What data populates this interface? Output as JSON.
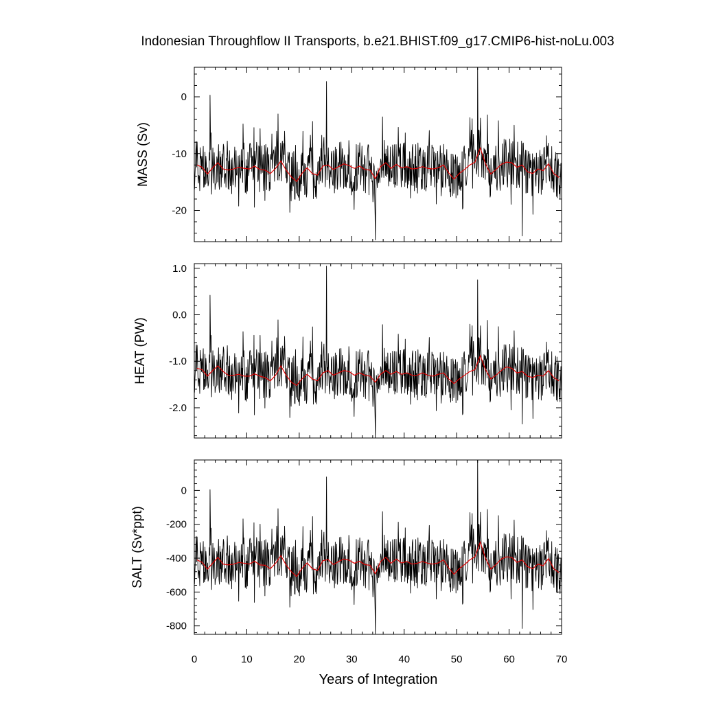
{
  "title": "Indonesian Throughflow II Transports, b.e21.BHIST.f09_g17.CMIP6-hist-noLu.003",
  "chart_data": {
    "type": "line",
    "title": "Indonesian Throughflow II Transports, b.e21.BHIST.f09_g17.CMIP6-hist-noLu.003",
    "xlabel": "Years of Integration",
    "xlim": [
      0,
      70
    ],
    "x_ticks": [
      0,
      10,
      20,
      30,
      40,
      50,
      60,
      70
    ],
    "x_tick_labels": [
      "0",
      "10",
      "20",
      "30",
      "40",
      "50",
      "60",
      "70"
    ],
    "grid": false,
    "legend": "none",
    "series_colors": {
      "monthly": "#000000",
      "annual_mean": "#e00000"
    },
    "panels": [
      {
        "ylabel": "MASS (Sv)",
        "ylim": [
          -25.5,
          5.2
        ],
        "y_ticks": [
          0,
          -10,
          -20
        ],
        "y_tick_labels": [
          "0",
          "-10",
          "-20"
        ],
        "annual_mean": {
          "x": [
            0.5,
            1.5,
            2.5,
            3.5,
            4.5,
            5.5,
            6.5,
            7.5,
            8.5,
            9.5,
            10.5,
            11.5,
            12.5,
            13.5,
            14.5,
            15.5,
            16.5,
            17.5,
            18.5,
            19.5,
            20.5,
            21.5,
            22.5,
            23.5,
            24.5,
            25.5,
            26.5,
            27.5,
            28.5,
            29.5,
            30.5,
            31.5,
            32.5,
            33.5,
            34.5,
            35.5,
            36.5,
            37.5,
            38.5,
            39.5,
            40.5,
            41.5,
            42.5,
            43.5,
            44.5,
            45.5,
            46.5,
            47.5,
            48.5,
            49.5,
            50.5,
            51.5,
            52.5,
            53.5,
            54.5,
            55.5,
            56.5,
            57.5,
            58.5,
            59.5,
            60.5,
            61.5,
            62.5,
            63.5,
            64.5,
            65.5,
            66.5,
            67.5,
            68.5,
            69.5
          ],
          "y": [
            -12.0,
            -12.4,
            -13.6,
            -12.5,
            -11.6,
            -12.7,
            -12.9,
            -12.7,
            -12.4,
            -12.6,
            -12.7,
            -12.2,
            -12.8,
            -12.9,
            -13.5,
            -12.6,
            -11.3,
            -12.9,
            -14.1,
            -14.9,
            -13.5,
            -12.5,
            -13.5,
            -13.8,
            -12.2,
            -12.0,
            -12.8,
            -12.3,
            -11.8,
            -12.1,
            -12.6,
            -12.2,
            -12.8,
            -12.9,
            -14.4,
            -12.3,
            -11.6,
            -12.6,
            -11.9,
            -12.5,
            -12.3,
            -12.7,
            -12.6,
            -12.3,
            -12.6,
            -12.7,
            -12.5,
            -12.0,
            -13.4,
            -14.5,
            -13.5,
            -12.8,
            -12.0,
            -11.5,
            -9.0,
            -11.8,
            -13.6,
            -12.8,
            -11.9,
            -11.5,
            -11.6,
            -12.4,
            -12.0,
            -13.2,
            -13.5,
            -12.7,
            -13.0,
            -11.8,
            -13.5,
            -14.2
          ]
        },
        "annotated_extremes": [
          {
            "x": 3.0,
            "y": 0.3
          },
          {
            "x": 25.2,
            "y": 2.7
          },
          {
            "x": 34.5,
            "y": -25.2
          },
          {
            "x": 54.0,
            "y": 5.1
          },
          {
            "x": 62.5,
            "y": -24.5
          }
        ]
      },
      {
        "ylabel": "HEAT (PW)",
        "ylim": [
          -2.65,
          1.1
        ],
        "y_ticks": [
          1.0,
          0.0,
          -1.0,
          -2.0
        ],
        "y_tick_labels": [
          "1.0",
          "0.0",
          "-1.0",
          "-2.0"
        ],
        "annual_mean": {
          "x": [
            0.5,
            1.5,
            2.5,
            3.5,
            4.5,
            5.5,
            6.5,
            7.5,
            8.5,
            9.5,
            10.5,
            11.5,
            12.5,
            13.5,
            14.5,
            15.5,
            16.5,
            17.5,
            18.5,
            19.5,
            20.5,
            21.5,
            22.5,
            23.5,
            24.5,
            25.5,
            26.5,
            27.5,
            28.5,
            29.5,
            30.5,
            31.5,
            32.5,
            33.5,
            34.5,
            35.5,
            36.5,
            37.5,
            38.5,
            39.5,
            40.5,
            41.5,
            42.5,
            43.5,
            44.5,
            45.5,
            46.5,
            47.5,
            48.5,
            49.5,
            50.5,
            51.5,
            52.5,
            53.5,
            54.5,
            55.5,
            56.5,
            57.5,
            58.5,
            59.5,
            60.5,
            61.5,
            62.5,
            63.5,
            64.5,
            65.5,
            66.5,
            67.5,
            68.5,
            69.5
          ],
          "y": [
            -1.15,
            -1.18,
            -1.32,
            -1.2,
            -1.1,
            -1.22,
            -1.3,
            -1.3,
            -1.28,
            -1.32,
            -1.32,
            -1.27,
            -1.32,
            -1.35,
            -1.42,
            -1.3,
            -1.1,
            -1.3,
            -1.45,
            -1.52,
            -1.38,
            -1.28,
            -1.38,
            -1.42,
            -1.25,
            -1.2,
            -1.3,
            -1.25,
            -1.2,
            -1.22,
            -1.3,
            -1.25,
            -1.3,
            -1.32,
            -1.45,
            -1.28,
            -1.2,
            -1.28,
            -1.22,
            -1.28,
            -1.25,
            -1.3,
            -1.3,
            -1.25,
            -1.3,
            -1.32,
            -1.28,
            -1.25,
            -1.38,
            -1.48,
            -1.38,
            -1.3,
            -1.22,
            -1.18,
            -0.88,
            -1.18,
            -1.38,
            -1.3,
            -1.2,
            -1.12,
            -1.15,
            -1.25,
            -1.22,
            -1.32,
            -1.35,
            -1.3,
            -1.32,
            -1.2,
            -1.35,
            -1.42
          ]
        },
        "annotated_extremes": [
          {
            "x": 3.0,
            "y": 0.42
          },
          {
            "x": 25.2,
            "y": 1.05
          },
          {
            "x": 34.5,
            "y": -2.65
          },
          {
            "x": 54.0,
            "y": 0.75
          },
          {
            "x": 62.5,
            "y": -2.35
          }
        ]
      },
      {
        "ylabel": "SALT (Sv*ppt)",
        "ylim": [
          -850,
          180
        ],
        "y_ticks": [
          0,
          -200,
          -400,
          -600,
          -800
        ],
        "y_tick_labels": [
          "0",
          "-200",
          "-400",
          "-600",
          "-800"
        ],
        "annual_mean": {
          "x": [
            0.5,
            1.5,
            2.5,
            3.5,
            4.5,
            5.5,
            6.5,
            7.5,
            8.5,
            9.5,
            10.5,
            11.5,
            12.5,
            13.5,
            14.5,
            15.5,
            16.5,
            17.5,
            18.5,
            19.5,
            20.5,
            21.5,
            22.5,
            23.5,
            24.5,
            25.5,
            26.5,
            27.5,
            28.5,
            29.5,
            30.5,
            31.5,
            32.5,
            33.5,
            34.5,
            35.5,
            36.5,
            37.5,
            38.5,
            39.5,
            40.5,
            41.5,
            42.5,
            43.5,
            44.5,
            45.5,
            46.5,
            47.5,
            48.5,
            49.5,
            50.5,
            51.5,
            52.5,
            53.5,
            54.5,
            55.5,
            56.5,
            57.5,
            58.5,
            59.5,
            60.5,
            61.5,
            62.5,
            63.5,
            64.5,
            65.5,
            66.5,
            67.5,
            68.5,
            69.5
          ],
          "y": [
            -410,
            -425,
            -465,
            -430,
            -395,
            -435,
            -440,
            -435,
            -425,
            -430,
            -435,
            -418,
            -440,
            -442,
            -462,
            -430,
            -385,
            -440,
            -480,
            -508,
            -462,
            -428,
            -462,
            -472,
            -415,
            -408,
            -438,
            -420,
            -405,
            -412,
            -430,
            -418,
            -438,
            -442,
            -492,
            -420,
            -395,
            -430,
            -405,
            -428,
            -420,
            -435,
            -430,
            -420,
            -430,
            -435,
            -428,
            -410,
            -458,
            -495,
            -462,
            -438,
            -410,
            -392,
            -305,
            -400,
            -465,
            -438,
            -405,
            -392,
            -395,
            -425,
            -410,
            -450,
            -462,
            -435,
            -445,
            -402,
            -462,
            -485
          ]
        },
        "annotated_extremes": [
          {
            "x": 3.0,
            "y": 5
          },
          {
            "x": 25.2,
            "y": 80
          },
          {
            "x": 34.5,
            "y": -850
          },
          {
            "x": 54.0,
            "y": 180
          },
          {
            "x": 62.5,
            "y": -815
          }
        ]
      }
    ]
  }
}
